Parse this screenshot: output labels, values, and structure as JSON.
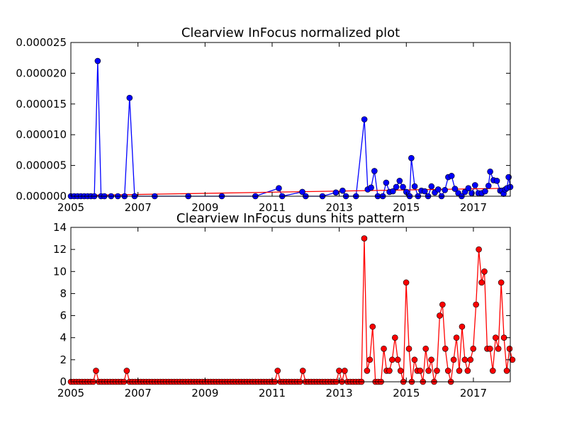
{
  "chart_data": [
    {
      "type": "line",
      "title": "Clearview InFocus normalized plot",
      "xlabel": "",
      "ylabel": "",
      "xlim": [
        2005,
        2018.1
      ],
      "ylim": [
        0,
        2.5e-05
      ],
      "xticks": [
        2005,
        2007,
        2009,
        2011,
        2013,
        2015,
        2017
      ],
      "yticks": [
        "0.000000",
        "0.000005",
        "0.000010",
        "0.000015",
        "0.000020",
        "0.000025"
      ],
      "grid": false,
      "series": [
        {
          "color": "#0000ff",
          "marker": "circle",
          "points": [
            [
              2005.0,
              0
            ],
            [
              2005.1,
              0
            ],
            [
              2005.2,
              0
            ],
            [
              2005.3,
              0
            ],
            [
              2005.4,
              0
            ],
            [
              2005.5,
              0
            ],
            [
              2005.6,
              0
            ],
            [
              2005.7,
              0
            ],
            [
              2005.8,
              2.2e-05
            ],
            [
              2005.9,
              0
            ],
            [
              2006.0,
              0
            ],
            [
              2006.2,
              0
            ],
            [
              2006.4,
              0
            ],
            [
              2006.6,
              0
            ],
            [
              2006.75,
              1.6e-05
            ],
            [
              2006.9,
              0
            ],
            [
              2007.5,
              0
            ],
            [
              2008.5,
              0
            ],
            [
              2009.5,
              0
            ],
            [
              2010.5,
              0
            ],
            [
              2011.2,
              1.3e-06
            ],
            [
              2011.3,
              0
            ],
            [
              2011.9,
              7e-07
            ],
            [
              2012.0,
              0
            ],
            [
              2012.5,
              0
            ],
            [
              2012.9,
              6e-07
            ],
            [
              2013.1,
              9e-07
            ],
            [
              2013.2,
              0
            ],
            [
              2013.5,
              0
            ],
            [
              2013.75,
              1.25e-05
            ],
            [
              2013.85,
              1.1e-06
            ],
            [
              2013.95,
              1.4e-06
            ],
            [
              2014.05,
              4.1e-06
            ],
            [
              2014.15,
              0
            ],
            [
              2014.3,
              0
            ],
            [
              2014.4,
              2.2e-06
            ],
            [
              2014.5,
              7e-07
            ],
            [
              2014.6,
              8e-07
            ],
            [
              2014.7,
              1.5e-06
            ],
            [
              2014.8,
              2.5e-06
            ],
            [
              2014.9,
              1.5e-06
            ],
            [
              2015.0,
              7e-07
            ],
            [
              2015.1,
              0
            ],
            [
              2015.15,
              6.2e-06
            ],
            [
              2015.25,
              1.6e-06
            ],
            [
              2015.35,
              0
            ],
            [
              2015.45,
              9e-07
            ],
            [
              2015.55,
              8e-07
            ],
            [
              2015.65,
              0
            ],
            [
              2015.75,
              1.6e-06
            ],
            [
              2015.85,
              6e-07
            ],
            [
              2015.95,
              1.1e-06
            ],
            [
              2016.05,
              0
            ],
            [
              2016.15,
              1e-06
            ],
            [
              2016.25,
              3.1e-06
            ],
            [
              2016.35,
              3.3e-06
            ],
            [
              2016.45,
              1.2e-06
            ],
            [
              2016.55,
              5e-07
            ],
            [
              2016.65,
              0
            ],
            [
              2016.75,
              7e-07
            ],
            [
              2016.85,
              1.3e-06
            ],
            [
              2016.95,
              5e-07
            ],
            [
              2017.05,
              1.8e-06
            ],
            [
              2017.15,
              5e-07
            ],
            [
              2017.25,
              5e-07
            ],
            [
              2017.35,
              8e-07
            ],
            [
              2017.45,
              1.7e-06
            ],
            [
              2017.5,
              4e-06
            ],
            [
              2017.6,
              2.6e-06
            ],
            [
              2017.7,
              2.5e-06
            ],
            [
              2017.8,
              9e-07
            ],
            [
              2017.85,
              9e-07
            ],
            [
              2017.9,
              4e-07
            ],
            [
              2017.95,
              1.1e-06
            ],
            [
              2018.0,
              1.3e-06
            ],
            [
              2018.05,
              3.1e-06
            ],
            [
              2018.1,
              1.5e-06
            ]
          ]
        },
        {
          "color": "#ff0000",
          "marker": "none",
          "points": [
            [
              2005.0,
              1e-07
            ],
            [
              2018.1,
              1.3e-06
            ]
          ]
        }
      ]
    },
    {
      "type": "line",
      "title": "Clearview InFocus duns hits pattern",
      "xlabel": "",
      "ylabel": "",
      "xlim": [
        2005,
        2018.1
      ],
      "ylim": [
        0,
        14
      ],
      "xticks": [
        2005,
        2007,
        2009,
        2011,
        2013,
        2015,
        2017
      ],
      "yticks": [
        0,
        2,
        4,
        6,
        8,
        10,
        12,
        14
      ],
      "grid": false,
      "series": [
        {
          "color": "#ff0000",
          "marker": "circle",
          "monthly_start": 2005.0,
          "monthly_step": 0.0833,
          "values": [
            0,
            0,
            0,
            0,
            0,
            0,
            0,
            0,
            0,
            1,
            0,
            0,
            0,
            0,
            0,
            0,
            0,
            0,
            0,
            0,
            1,
            0,
            0,
            0,
            0,
            0,
            0,
            0,
            0,
            0,
            0,
            0,
            0,
            0,
            0,
            0,
            0,
            0,
            0,
            0,
            0,
            0,
            0,
            0,
            0,
            0,
            0,
            0,
            0,
            0,
            0,
            0,
            0,
            0,
            0,
            0,
            0,
            0,
            0,
            0,
            0,
            0,
            0,
            0,
            0,
            0,
            0,
            0,
            0,
            0,
            0,
            0,
            0,
            0,
            1,
            0,
            0,
            0,
            0,
            0,
            0,
            0,
            0,
            1,
            0,
            0,
            0,
            0,
            0,
            0,
            0,
            0,
            0,
            0,
            0,
            0,
            1,
            0,
            1,
            0,
            0,
            0,
            0,
            0,
            0,
            13,
            1,
            2,
            5,
            0,
            0,
            0,
            3,
            1,
            1,
            2,
            4,
            2,
            1,
            0,
            9,
            3,
            0,
            2,
            1,
            1,
            0,
            3,
            1,
            2,
            0,
            1,
            6,
            7,
            3,
            1,
            0,
            2,
            4,
            1,
            5,
            2,
            1,
            2,
            3,
            7,
            12,
            9,
            10,
            3,
            3,
            1,
            4,
            3,
            9,
            4,
            1,
            3,
            2
          ]
        }
      ]
    }
  ]
}
